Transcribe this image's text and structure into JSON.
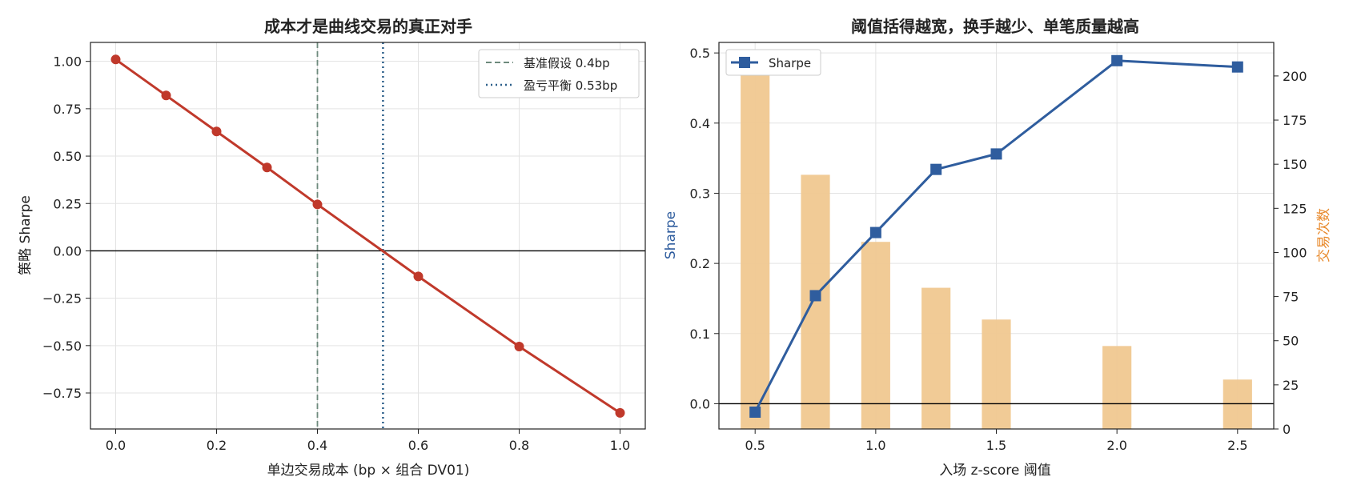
{
  "chart_data": [
    {
      "type": "line",
      "title": "成本才是曲线交易的真正对手",
      "xlabel": "单边交易成本 (bp × 组合 DV01)",
      "ylabel": "策略 Sharpe",
      "xlim": [
        -0.05,
        1.05
      ],
      "ylim": [
        -0.94,
        1.1
      ],
      "xticks": [
        0.0,
        0.2,
        0.4,
        0.6,
        0.8,
        1.0
      ],
      "xtick_labels": [
        "0.0",
        "0.2",
        "0.4",
        "0.6",
        "0.8",
        "1.0"
      ],
      "yticks": [
        -0.75,
        -0.5,
        -0.25,
        0.0,
        0.25,
        0.5,
        0.75,
        1.0
      ],
      "ytick_labels": [
        "−0.75",
        "−0.50",
        "−0.25",
        "0.00",
        "0.25",
        "0.50",
        "0.75",
        "1.00"
      ],
      "grid": true,
      "legend_position": "top-right",
      "series": [
        {
          "x": [
            0.0,
            0.1,
            0.2,
            0.3,
            0.4,
            0.6,
            0.8,
            1.0
          ],
          "y": [
            1.01,
            0.82,
            0.63,
            0.44,
            0.245,
            -0.135,
            -0.505,
            -0.855
          ],
          "color": "#c0392b"
        }
      ],
      "reference_lines": [
        {
          "orientation": "horizontal",
          "value": 0.0,
          "color": "#000000",
          "style": "solid"
        },
        {
          "orientation": "vertical",
          "value": 0.4,
          "label": "基准假设 0.4bp",
          "color": "#6e8a7d",
          "style": "dashed"
        },
        {
          "orientation": "vertical",
          "value": 0.53,
          "label": "盈亏平衡 0.53bp",
          "color": "#2c5f8a",
          "style": "dotted"
        }
      ]
    },
    {
      "type": "bar+line",
      "title": "阈值括得越宽，换手越少、单笔质量越高",
      "xlabel": "入场 z-score 阈值",
      "ylabel_left": "Sharpe",
      "ylabel_right": "交易次数",
      "ylabel_left_color": "#2f5d9e",
      "ylabel_right_color": "#e8892b",
      "xlim": [
        0.35,
        2.65
      ],
      "ylim_left": [
        -0.036,
        0.515
      ],
      "ylim_right": [
        0,
        219
      ],
      "xticks": [
        0.5,
        1.0,
        1.5,
        2.0,
        2.5
      ],
      "xtick_labels": [
        "0.5",
        "1.0",
        "1.5",
        "2.0",
        "2.5"
      ],
      "yticks_left": [
        0.0,
        0.1,
        0.2,
        0.3,
        0.4,
        0.5
      ],
      "ytick_labels_left": [
        "0.0",
        "0.1",
        "0.2",
        "0.3",
        "0.4",
        "0.5"
      ],
      "yticks_right": [
        0,
        25,
        50,
        75,
        100,
        125,
        150,
        175,
        200
      ],
      "ytick_labels_right": [
        "0",
        "25",
        "50",
        "75",
        "100",
        "125",
        "150",
        "175",
        "200"
      ],
      "grid": true,
      "legend_position": "top-left",
      "bars": {
        "name": "交易次数",
        "x": [
          0.5,
          0.75,
          1.0,
          1.25,
          1.5,
          2.0,
          2.5
        ],
        "values": [
          209,
          144,
          106,
          80,
          62,
          47,
          28
        ],
        "color": "#f0c890"
      },
      "series": [
        {
          "name": "Sharpe",
          "x": [
            0.5,
            0.75,
            1.0,
            1.25,
            1.5,
            2.0,
            2.5
          ],
          "y": [
            -0.012,
            0.154,
            0.244,
            0.334,
            0.356,
            0.489,
            0.48
          ],
          "color": "#2f5d9e",
          "marker": "square"
        }
      ],
      "reference_lines": [
        {
          "orientation": "horizontal",
          "value": 0.0,
          "color": "#000000",
          "style": "solid"
        }
      ]
    }
  ]
}
